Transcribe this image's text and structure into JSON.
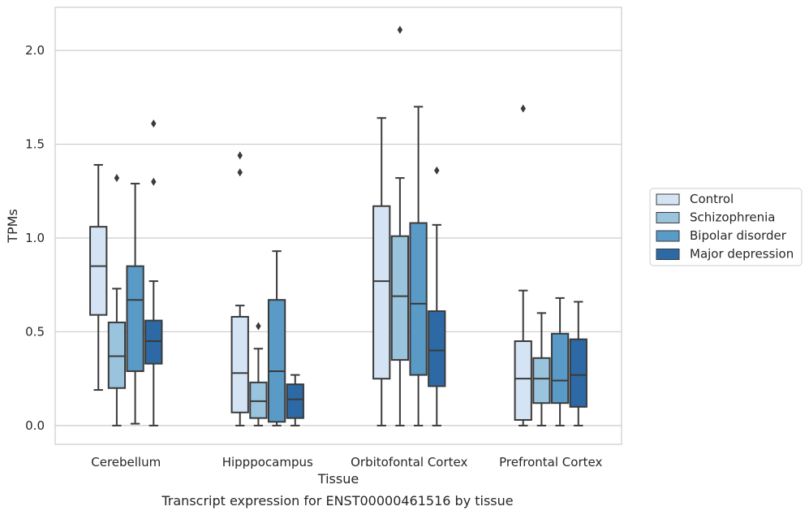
{
  "caption": "Transcript expression for ENST00000461516 by tissue",
  "chart_data": {
    "type": "boxplot",
    "xlabel": "Tissue",
    "ylabel": "TPMs",
    "ylim": [
      -0.1,
      2.23
    ],
    "yticks": [
      0.0,
      0.5,
      1.0,
      1.5,
      2.0
    ],
    "ytick_labels": [
      "0.0",
      "0.5",
      "1.0",
      "1.5",
      "2.0"
    ],
    "grid": "horizontal",
    "legend_position": "center-right outside",
    "categories": [
      "Cerebellum",
      "Hipppocampus",
      "Orbitofontal Cortex",
      "Prefrontal Cortex"
    ],
    "series": [
      {
        "name": "Control",
        "color": "#d4e4f4",
        "boxes": [
          {
            "whislo": 0.19,
            "q1": 0.59,
            "med": 0.85,
            "q3": 1.06,
            "whishi": 1.39,
            "fliers": []
          },
          {
            "whislo": 0.0,
            "q1": 0.07,
            "med": 0.28,
            "q3": 0.58,
            "whishi": 0.64,
            "fliers": [
              1.35,
              1.44
            ]
          },
          {
            "whislo": 0.0,
            "q1": 0.25,
            "med": 0.77,
            "q3": 1.17,
            "whishi": 1.64,
            "fliers": []
          },
          {
            "whislo": 0.0,
            "q1": 0.03,
            "med": 0.25,
            "q3": 0.45,
            "whishi": 0.72,
            "fliers": [
              1.69
            ]
          }
        ]
      },
      {
        "name": "Schizophrenia",
        "color": "#9ac3dd",
        "boxes": [
          {
            "whislo": 0.0,
            "q1": 0.2,
            "med": 0.37,
            "q3": 0.55,
            "whishi": 0.73,
            "fliers": [
              1.32
            ]
          },
          {
            "whislo": 0.0,
            "q1": 0.04,
            "med": 0.13,
            "q3": 0.23,
            "whishi": 0.41,
            "fliers": [
              0.53
            ]
          },
          {
            "whislo": 0.0,
            "q1": 0.35,
            "med": 0.69,
            "q3": 1.01,
            "whishi": 1.32,
            "fliers": [
              2.11
            ]
          },
          {
            "whislo": 0.0,
            "q1": 0.12,
            "med": 0.25,
            "q3": 0.36,
            "whishi": 0.6,
            "fliers": []
          }
        ]
      },
      {
        "name": "Bipolar disorder",
        "color": "#5a9ac6",
        "boxes": [
          {
            "whislo": 0.01,
            "q1": 0.29,
            "med": 0.67,
            "q3": 0.85,
            "whishi": 1.29,
            "fliers": []
          },
          {
            "whislo": 0.0,
            "q1": 0.02,
            "med": 0.29,
            "q3": 0.67,
            "whishi": 0.93,
            "fliers": []
          },
          {
            "whislo": 0.0,
            "q1": 0.27,
            "med": 0.65,
            "q3": 1.08,
            "whishi": 1.7,
            "fliers": []
          },
          {
            "whislo": 0.0,
            "q1": 0.12,
            "med": 0.24,
            "q3": 0.49,
            "whishi": 0.68,
            "fliers": []
          }
        ]
      },
      {
        "name": "Major depression",
        "color": "#2d6aa5",
        "boxes": [
          {
            "whislo": 0.0,
            "q1": 0.33,
            "med": 0.45,
            "q3": 0.56,
            "whishi": 0.77,
            "fliers": [
              1.3,
              1.61
            ]
          },
          {
            "whislo": 0.0,
            "q1": 0.04,
            "med": 0.14,
            "q3": 0.22,
            "whishi": 0.27,
            "fliers": []
          },
          {
            "whislo": 0.0,
            "q1": 0.21,
            "med": 0.4,
            "q3": 0.61,
            "whishi": 1.07,
            "fliers": [
              1.36
            ]
          },
          {
            "whislo": 0.0,
            "q1": 0.1,
            "med": 0.27,
            "q3": 0.46,
            "whishi": 0.66,
            "fliers": []
          }
        ]
      }
    ]
  }
}
